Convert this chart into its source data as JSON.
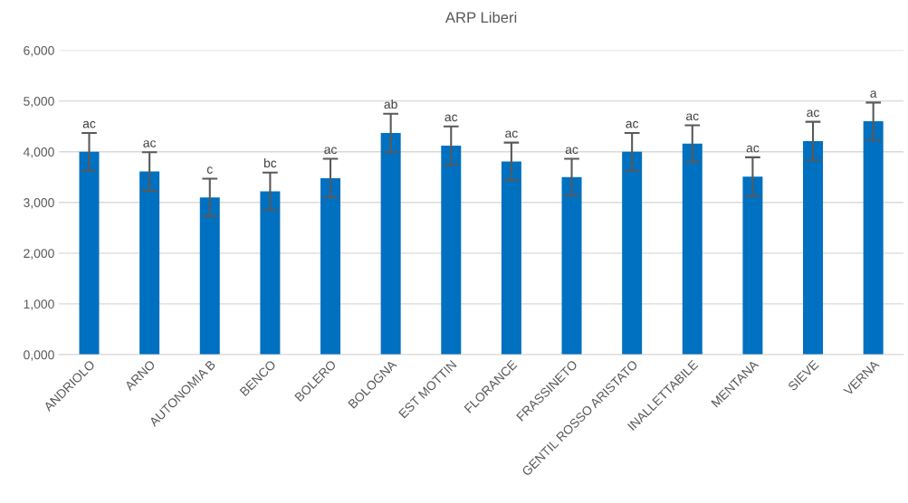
{
  "chart_data": {
    "type": "bar",
    "title": "ARP Liberi",
    "categories": [
      "ANDRIOLO",
      "ARNO",
      "AUTONOMIA B",
      "BENCO",
      "BOLERO",
      "BOLOGNA",
      "EST MOTTIN",
      "FLORANCE",
      "FRASSINETO",
      "GENTIL ROSSO ARISTATO",
      "INALLETTABILE",
      "MENTANA",
      "SIEVE",
      "VERNA"
    ],
    "values": [
      4000,
      3610,
      3100,
      3220,
      3480,
      4370,
      4120,
      3810,
      3500,
      4000,
      4160,
      3510,
      4210,
      4600
    ],
    "errors": [
      370,
      380,
      370,
      370,
      380,
      380,
      380,
      370,
      360,
      370,
      360,
      380,
      380,
      370
    ],
    "color": "#0070c0",
    "ylim": [
      0,
      6000
    ],
    "yticks": [
      {
        "value": 0,
        "label": "0,000"
      },
      {
        "value": 1000,
        "label": "1,000"
      },
      {
        "value": 2000,
        "label": "2,000"
      },
      {
        "value": 3000,
        "label": "3,000"
      },
      {
        "value": 4000,
        "label": "4,000"
      },
      {
        "value": 5000,
        "label": "5,000"
      },
      {
        "value": 6000,
        "label": "6,000"
      }
    ],
    "grid": "y",
    "annotations": [
      {
        "text": "ac",
        "x": "ANDRIOLO",
        "y": 4370
      },
      {
        "text": "ac",
        "x": "ARNO",
        "y": 3990
      },
      {
        "text": "c",
        "x": "AUTONOMIA B",
        "y": 3470
      },
      {
        "text": "bc",
        "x": "BENCO",
        "y": 3590
      },
      {
        "text": "ac",
        "x": "BOLERO",
        "y": 3860
      },
      {
        "text": "ab",
        "x": "BOLOGNA",
        "y": 4750
      },
      {
        "text": "ac",
        "x": "EST MOTTIN",
        "y": 4500
      },
      {
        "text": "ac",
        "x": "FLORANCE",
        "y": 4180
      },
      {
        "text": "ac",
        "x": "FRASSINETO",
        "y": 3860
      },
      {
        "text": "ac",
        "x": "GENTIL ROSSO ARISTATO",
        "y": 4370
      },
      {
        "text": "ac",
        "x": "INALLETTABILE",
        "y": 4520
      },
      {
        "text": "ac",
        "x": "MENTANA",
        "y": 3890
      },
      {
        "text": "ac",
        "x": "SIEVE",
        "y": 4590
      },
      {
        "text": "a",
        "x": "VERNA",
        "y": 4970
      }
    ]
  }
}
